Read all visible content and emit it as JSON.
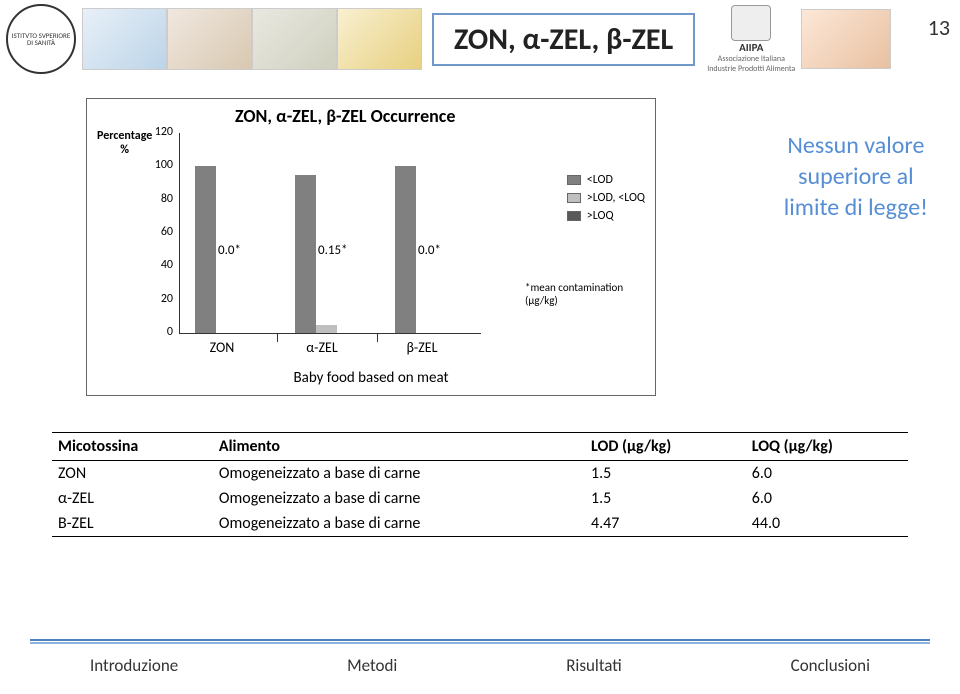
{
  "page_number": "13",
  "title": "ZON, α-ZEL, β-ZEL",
  "header": {
    "iss_logo_text": "ISTITVTO SVPERIORE DI SANITÀ",
    "aiipa_name": "AIIPA",
    "aiipa_sub1": "Associazione Italiana",
    "aiipa_sub2": "Industrie Prodotti Alimenta"
  },
  "chart": {
    "type": "bar",
    "title": "ZON, α-ZEL, β-ZEL Occurrence",
    "y_label_line1": "Percentage",
    "y_label_line2": "%",
    "ylim": [
      0,
      120
    ],
    "ytick_step": 20,
    "yticks": [
      "0",
      "20",
      "40",
      "60",
      "80",
      "100",
      "120"
    ],
    "categories": [
      "ZON",
      "α-ZEL",
      "β-ZEL"
    ],
    "subcaption": "Baby food based on meat",
    "series": [
      {
        "name": "<LOD",
        "color": "#808080",
        "values": [
          100,
          95,
          100
        ]
      },
      {
        "name": ">LOD, <LOQ",
        "color": "#bfbfbf",
        "values": [
          0,
          5,
          0
        ]
      },
      {
        "name": ">LOQ",
        "color": "#595959",
        "values": [
          0,
          0,
          0
        ]
      }
    ],
    "annotations": [
      "0.0*",
      "0.15*",
      "0.0*"
    ],
    "footnote_line1": "*mean contamination",
    "footnote_line2": "(µg/kg)",
    "bar_colors": {
      "lod": "#808080",
      "lodloq": "#bfbfbf",
      "loq": "#595959"
    },
    "axis_color": "#333333",
    "background_color": "#ffffff",
    "title_fontsize": 18,
    "label_fontsize": 12
  },
  "callout": {
    "line1": "Nessun valore",
    "line2": "superiore al",
    "line3": "limite di legge!",
    "color": "#558ed5",
    "fontsize": 24
  },
  "table": {
    "columns": [
      "Micotossina",
      "Alimento",
      "LOD (µg/kg)",
      "LOQ (µg/kg)"
    ],
    "rows": [
      [
        "ZON",
        "Omogeneizzato a base di carne",
        "1.5",
        "6.0"
      ],
      [
        "α-ZEL",
        "Omogeneizzato a base di carne",
        "1.5",
        "6.0"
      ],
      [
        "Β-ZEL",
        "Omogeneizzato a base di carne",
        "4.47",
        "44.0"
      ]
    ]
  },
  "footer": {
    "tabs": [
      "Introduzione",
      "Metodi",
      "Risultati",
      "Conclusioni"
    ],
    "line_color_1": "#4f81bd",
    "line_color_2": "#8db3e2"
  }
}
